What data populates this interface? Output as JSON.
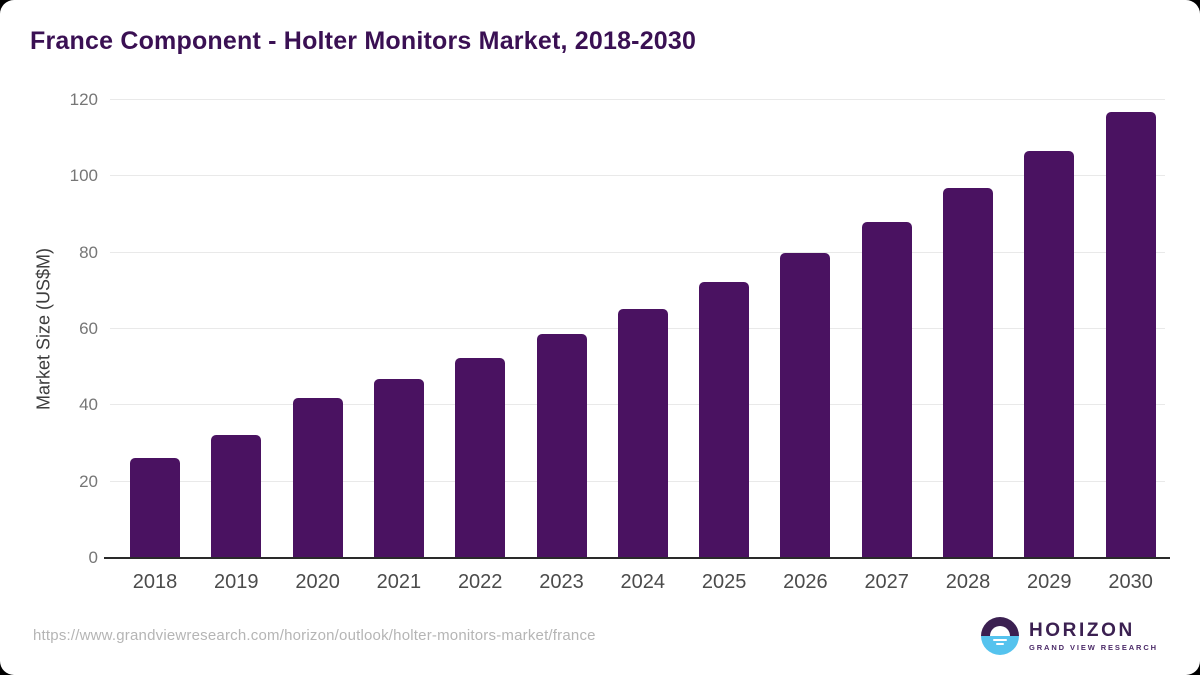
{
  "title": "France Component - Holter Monitors Market, 2018-2030",
  "chart_data": {
    "type": "bar",
    "categories": [
      "2018",
      "2019",
      "2020",
      "2021",
      "2022",
      "2023",
      "2024",
      "2025",
      "2026",
      "2027",
      "2028",
      "2029",
      "2030"
    ],
    "values": [
      26.1,
      32.3,
      41.9,
      47.0,
      52.5,
      58.8,
      65.2,
      72.3,
      79.9,
      88.1,
      97.0,
      106.7,
      116.9
    ],
    "title": "France Component - Holter Monitors Market, 2018-2030",
    "xlabel": "",
    "ylabel": "Market Size (US$M)",
    "ylim": [
      0,
      120
    ],
    "yticks": [
      0,
      20,
      40,
      60,
      80,
      100,
      120
    ],
    "grid": "horizontal",
    "legend": "none",
    "bar_color": "#4a1261"
  },
  "footer": {
    "source_url": "https://www.grandviewresearch.com/horizon/outlook/holter-monitors-market/france",
    "logo": {
      "name": "HORIZON",
      "subtitle": "GRAND VIEW RESEARCH"
    }
  },
  "colors": {
    "bar": "#4a1261",
    "title_text": "#3a1053",
    "axis_line": "#2a2a2a",
    "gridline": "#e9e9e9",
    "y_tick_text": "#767676",
    "x_tick_text": "#4b4b4b",
    "url_text": "#b5b5b5",
    "logo_purple": "#3b2051",
    "logo_blue": "#55c3ee",
    "card_background": "#ffffff",
    "page_background": "#000000"
  }
}
